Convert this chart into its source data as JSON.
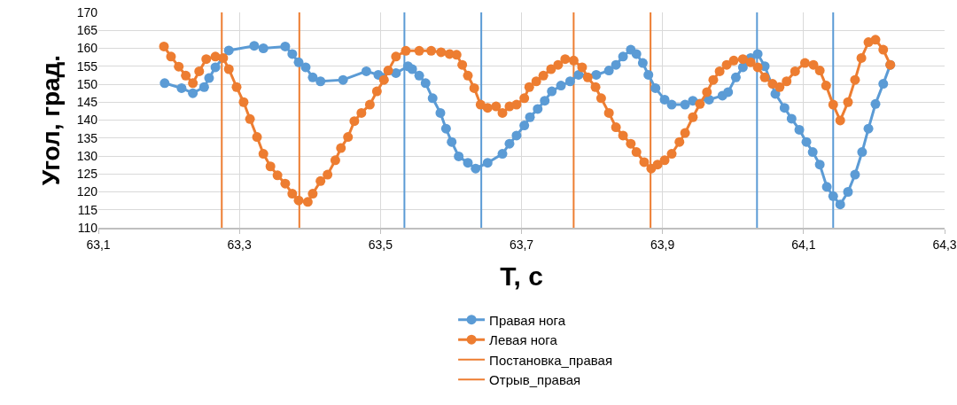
{
  "chart_data": {
    "type": "line",
    "xlabel": "Т, с",
    "ylabel": "Угол, град.",
    "xlim": [
      63.1,
      64.3
    ],
    "xticks": [
      {
        "value": 63.1,
        "label": "63,1"
      },
      {
        "value": 63.3,
        "label": "63,3"
      },
      {
        "value": 63.5,
        "label": "63,5"
      },
      {
        "value": 63.7,
        "label": "63,7"
      },
      {
        "value": 63.9,
        "label": "63,9"
      },
      {
        "value": 64.1,
        "label": "64,1"
      },
      {
        "value": 64.3,
        "label": "64,3"
      }
    ],
    "ylim": [
      110,
      170
    ],
    "yticks": [
      110,
      115,
      120,
      125,
      130,
      135,
      140,
      145,
      150,
      155,
      160,
      165,
      170
    ],
    "grid": true,
    "legend": "bottom",
    "marker": "circle",
    "line_style": "solid",
    "series": [
      {
        "name": "Правая нога",
        "color": "#5b9bd5",
        "x": [
          63.194,
          63.218,
          63.234,
          63.25,
          63.257,
          63.266,
          63.285,
          63.321,
          63.334,
          63.365,
          63.375,
          63.384,
          63.394,
          63.404,
          63.415,
          63.447,
          63.48,
          63.497,
          63.522,
          63.539,
          63.545,
          63.555,
          63.564,
          63.574,
          63.585,
          63.593,
          63.601,
          63.611,
          63.624,
          63.635,
          63.652,
          63.673,
          63.683,
          63.693,
          63.704,
          63.712,
          63.723,
          63.733,
          63.743,
          63.756,
          63.769,
          63.781,
          63.806,
          63.824,
          63.834,
          63.844,
          63.855,
          63.863,
          63.872,
          63.88,
          63.89,
          63.903,
          63.913,
          63.932,
          63.943,
          63.966,
          63.985,
          63.993,
          64.004,
          64.014,
          64.025,
          64.035,
          64.045,
          64.06,
          64.073,
          64.083,
          64.094,
          64.104,
          64.113,
          64.123,
          64.133,
          64.142,
          64.152,
          64.163,
          64.173,
          64.183,
          64.192,
          64.202,
          64.213,
          64.223
        ],
        "values": [
          150.3,
          148.9,
          147.5,
          149.2,
          151.7,
          154.7,
          159.4,
          160.7,
          160.0,
          160.5,
          158.4,
          156.1,
          154.7,
          151.9,
          150.8,
          151.2,
          153.6,
          152.6,
          153.1,
          155.0,
          154.2,
          152.4,
          150.3,
          146.1,
          142.0,
          137.6,
          133.9,
          129.9,
          128.1,
          126.5,
          128.1,
          130.6,
          133.4,
          135.7,
          138.5,
          140.8,
          143.1,
          145.4,
          148.0,
          149.6,
          150.8,
          152.6,
          152.6,
          153.8,
          155.4,
          157.7,
          159.6,
          158.4,
          155.9,
          152.6,
          148.9,
          145.7,
          144.3,
          144.3,
          145.4,
          145.7,
          146.8,
          147.8,
          151.9,
          154.7,
          157.3,
          158.4,
          155.0,
          147.3,
          143.4,
          140.4,
          137.3,
          133.9,
          131.1,
          127.6,
          121.4,
          118.8,
          116.5,
          120.0,
          124.8,
          131.1,
          137.6,
          144.5,
          150.1,
          155.4
        ]
      },
      {
        "name": "Левая нога",
        "color": "#ed7d31",
        "x": [
          63.193,
          63.203,
          63.214,
          63.224,
          63.234,
          63.243,
          63.253,
          63.266,
          63.277,
          63.285,
          63.296,
          63.306,
          63.315,
          63.325,
          63.334,
          63.344,
          63.354,
          63.365,
          63.375,
          63.384,
          63.397,
          63.404,
          63.415,
          63.425,
          63.436,
          63.444,
          63.454,
          63.463,
          63.473,
          63.485,
          63.495,
          63.505,
          63.511,
          63.522,
          63.536,
          63.555,
          63.572,
          63.586,
          63.598,
          63.608,
          63.616,
          63.624,
          63.633,
          63.642,
          63.652,
          63.664,
          63.673,
          63.683,
          63.693,
          63.704,
          63.711,
          63.721,
          63.731,
          63.742,
          63.752,
          63.762,
          63.774,
          63.786,
          63.794,
          63.805,
          63.813,
          63.824,
          63.834,
          63.844,
          63.855,
          63.863,
          63.874,
          63.884,
          63.893,
          63.903,
          63.913,
          63.924,
          63.932,
          63.943,
          63.953,
          63.963,
          63.972,
          63.981,
          63.991,
          64.001,
          64.014,
          64.025,
          64.035,
          64.045,
          64.056,
          64.066,
          64.076,
          64.088,
          64.102,
          64.114,
          64.123,
          64.132,
          64.142,
          64.152,
          64.163,
          64.173,
          64.182,
          64.192,
          64.202,
          64.213,
          64.223
        ],
        "values": [
          160.5,
          157.7,
          154.9,
          152.4,
          150.3,
          153.6,
          157.0,
          157.7,
          157.3,
          154.2,
          149.2,
          145.0,
          140.3,
          135.3,
          130.6,
          127.1,
          124.6,
          122.3,
          119.5,
          117.6,
          117.2,
          119.5,
          123.0,
          124.8,
          128.8,
          132.2,
          135.3,
          139.7,
          142.0,
          144.3,
          148.0,
          151.2,
          153.8,
          157.7,
          159.3,
          159.3,
          159.3,
          158.9,
          158.4,
          158.2,
          155.4,
          152.4,
          148.9,
          144.3,
          143.4,
          143.8,
          142.0,
          143.8,
          144.3,
          146.1,
          149.2,
          150.8,
          152.4,
          154.2,
          155.4,
          157.0,
          156.6,
          154.7,
          151.9,
          149.2,
          146.1,
          142.0,
          138.0,
          135.7,
          133.4,
          131.1,
          128.3,
          126.5,
          127.6,
          128.8,
          130.6,
          133.9,
          136.4,
          140.8,
          144.5,
          147.8,
          151.2,
          153.6,
          155.4,
          156.6,
          157.0,
          156.1,
          154.7,
          151.9,
          150.1,
          149.2,
          150.8,
          153.6,
          155.9,
          155.4,
          153.8,
          149.6,
          144.3,
          139.9,
          145.0,
          151.2,
          157.3,
          161.7,
          162.4,
          159.6,
          155.4
        ]
      }
    ],
    "ref_lines": [
      {
        "axis": "x",
        "value": 63.275,
        "label": "Постановка_правая",
        "color": "#ed7d31",
        "line_style": "solid"
      },
      {
        "axis": "x",
        "value": 63.385,
        "label": "Отрыв_правая",
        "color": "#ed7d31",
        "line_style": "solid"
      },
      {
        "axis": "x",
        "value": 63.774,
        "color": "#ed7d31",
        "line_style": "solid"
      },
      {
        "axis": "x",
        "value": 63.883,
        "color": "#ed7d31",
        "line_style": "solid"
      },
      {
        "axis": "x",
        "value": 63.534,
        "color": "#5b9bd5",
        "line_style": "solid"
      },
      {
        "axis": "x",
        "value": 63.643,
        "color": "#5b9bd5",
        "line_style": "solid"
      },
      {
        "axis": "x",
        "value": 64.034,
        "color": "#5b9bd5",
        "line_style": "solid"
      },
      {
        "axis": "x",
        "value": 64.142,
        "color": "#5b9bd5",
        "line_style": "solid"
      }
    ]
  }
}
